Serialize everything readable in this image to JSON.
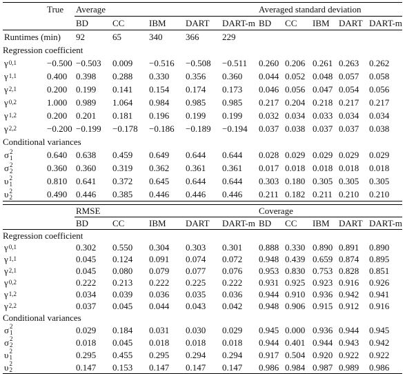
{
  "top": {
    "header": {
      "true": "True",
      "group_a": "Average",
      "group_b": "Averaged standard deviation",
      "columns_a": [
        "BD",
        "CC",
        "IBM",
        "DART",
        "DART-m"
      ],
      "columns_b": [
        "BD",
        "CC",
        "IBM",
        "DART",
        "DART-m"
      ]
    },
    "runtimes": {
      "label": "Runtimes (min)",
      "values": [
        "92",
        "65",
        "340",
        "366",
        "229"
      ]
    },
    "sections": [
      {
        "title": "Regression coefficient",
        "rows": [
          {
            "param": {
              "symbol": "γ",
              "sub": "0,1"
            },
            "true": "−0.500",
            "a": [
              "−0.503",
              "0.009",
              "−0.516",
              "−0.508",
              "−0.511"
            ],
            "b": [
              "0.260",
              "0.206",
              "0.261",
              "0.263",
              "0.262"
            ]
          },
          {
            "param": {
              "symbol": "γ",
              "sub": "1,1"
            },
            "true": "0.400",
            "a": [
              "0.398",
              "0.288",
              "0.330",
              "0.356",
              "0.360"
            ],
            "b": [
              "0.044",
              "0.052",
              "0.048",
              "0.057",
              "0.058"
            ]
          },
          {
            "param": {
              "symbol": "γ",
              "sub": "2,1"
            },
            "true": "0.200",
            "a": [
              "0.199",
              "0.141",
              "0.154",
              "0.174",
              "0.173"
            ],
            "b": [
              "0.046",
              "0.056",
              "0.047",
              "0.054",
              "0.056"
            ]
          },
          {
            "param": {
              "symbol": "γ",
              "sub": "0,2"
            },
            "true": "1.000",
            "a": [
              "0.989",
              "1.064",
              "0.984",
              "0.985",
              "0.985"
            ],
            "b": [
              "0.217",
              "0.204",
              "0.218",
              "0.217",
              "0.217"
            ]
          },
          {
            "param": {
              "symbol": "γ",
              "sub": "1,2"
            },
            "true": "0.200",
            "a": [
              "0.201",
              "0.181",
              "0.196",
              "0.199",
              "0.199"
            ],
            "b": [
              "0.032",
              "0.034",
              "0.033",
              "0.034",
              "0.034"
            ]
          },
          {
            "param": {
              "symbol": "γ",
              "sub": "2,2"
            },
            "true": "−0.200",
            "a": [
              "−0.199",
              "−0.178",
              "−0.186",
              "−0.189",
              "−0.194"
            ],
            "b": [
              "0.037",
              "0.038",
              "0.037",
              "0.037",
              "0.038"
            ]
          }
        ]
      },
      {
        "title": "Conditional variances",
        "rows": [
          {
            "param": {
              "symbol": "σ",
              "sup": "2",
              "sub": "1"
            },
            "true": "0.640",
            "a": [
              "0.638",
              "0.459",
              "0.649",
              "0.644",
              "0.644"
            ],
            "b": [
              "0.028",
              "0.029",
              "0.029",
              "0.029",
              "0.029"
            ]
          },
          {
            "param": {
              "symbol": "σ",
              "sup": "2",
              "sub": "2"
            },
            "true": "0.360",
            "a": [
              "0.360",
              "0.319",
              "0.362",
              "0.361",
              "0.361"
            ],
            "b": [
              "0.017",
              "0.018",
              "0.018",
              "0.018",
              "0.018"
            ]
          },
          {
            "param": {
              "symbol": "υ",
              "sup": "2",
              "sub": "1"
            },
            "true": "0.810",
            "a": [
              "0.641",
              "0.372",
              "0.645",
              "0.644",
              "0.644"
            ],
            "b": [
              "0.303",
              "0.180",
              "0.305",
              "0.305",
              "0.305"
            ]
          },
          {
            "param": {
              "symbol": "υ",
              "sup": "2",
              "sub": "2"
            },
            "true": "0.490",
            "a": [
              "0.446",
              "0.385",
              "0.446",
              "0.446",
              "0.446"
            ],
            "b": [
              "0.211",
              "0.182",
              "0.211",
              "0.210",
              "0.210"
            ]
          }
        ]
      }
    ]
  },
  "bottom": {
    "header": {
      "group_a": "RMSE",
      "group_b": "Coverage",
      "columns_a": [
        "BD",
        "CC",
        "IBM",
        "DART",
        "DART-m"
      ],
      "columns_b": [
        "BD",
        "CC",
        "IBM",
        "DART",
        "DART-m"
      ]
    },
    "sections": [
      {
        "title": "Regression coefficient",
        "rows": [
          {
            "param": {
              "symbol": "γ",
              "sub": "0,1"
            },
            "a": [
              "0.302",
              "0.550",
              "0.304",
              "0.303",
              "0.301"
            ],
            "b": [
              "0.888",
              "0.330",
              "0.890",
              "0.891",
              "0.890"
            ]
          },
          {
            "param": {
              "symbol": "γ",
              "sub": "1,1"
            },
            "a": [
              "0.045",
              "0.124",
              "0.091",
              "0.074",
              "0.072"
            ],
            "b": [
              "0.948",
              "0.439",
              "0.659",
              "0.874",
              "0.895"
            ]
          },
          {
            "param": {
              "symbol": "γ",
              "sub": "2,1"
            },
            "a": [
              "0.045",
              "0.080",
              "0.079",
              "0.077",
              "0.076"
            ],
            "b": [
              "0.953",
              "0.830",
              "0.753",
              "0.828",
              "0.851"
            ]
          },
          {
            "param": {
              "symbol": "γ",
              "sub": "0,2"
            },
            "a": [
              "0.222",
              "0.213",
              "0.222",
              "0.225",
              "0.222"
            ],
            "b": [
              "0.931",
              "0.925",
              "0.923",
              "0.916",
              "0.926"
            ]
          },
          {
            "param": {
              "symbol": "γ",
              "sub": "1,2"
            },
            "a": [
              "0.034",
              "0.039",
              "0.036",
              "0.035",
              "0.036"
            ],
            "b": [
              "0.944",
              "0.910",
              "0.936",
              "0.942",
              "0.941"
            ]
          },
          {
            "param": {
              "symbol": "γ",
              "sub": "2,2"
            },
            "a": [
              "0.037",
              "0.045",
              "0.044",
              "0.043",
              "0.042"
            ],
            "b": [
              "0.948",
              "0.906",
              "0.915",
              "0.912",
              "0.916"
            ]
          }
        ]
      },
      {
        "title": "Conditional variances",
        "rows": [
          {
            "param": {
              "symbol": "σ",
              "sup": "2",
              "sub": "1"
            },
            "a": [
              "0.029",
              "0.184",
              "0.031",
              "0.030",
              "0.029"
            ],
            "b": [
              "0.945",
              "0.000",
              "0.936",
              "0.944",
              "0.945"
            ]
          },
          {
            "param": {
              "symbol": "σ",
              "sup": "2",
              "sub": "2"
            },
            "a": [
              "0.018",
              "0.045",
              "0.018",
              "0.018",
              "0.018"
            ],
            "b": [
              "0.944",
              "0.401",
              "0.944",
              "0.943",
              "0.942"
            ]
          },
          {
            "param": {
              "symbol": "υ",
              "sup": "2",
              "sub": "1"
            },
            "a": [
              "0.295",
              "0.455",
              "0.295",
              "0.294",
              "0.294"
            ],
            "b": [
              "0.917",
              "0.504",
              "0.920",
              "0.922",
              "0.922"
            ]
          },
          {
            "param": {
              "symbol": "υ",
              "sup": "2",
              "sub": "2"
            },
            "a": [
              "0.147",
              "0.153",
              "0.147",
              "0.147",
              "0.147"
            ],
            "b": [
              "0.986",
              "0.984",
              "0.987",
              "0.989",
              "0.986"
            ]
          }
        ]
      }
    ]
  }
}
